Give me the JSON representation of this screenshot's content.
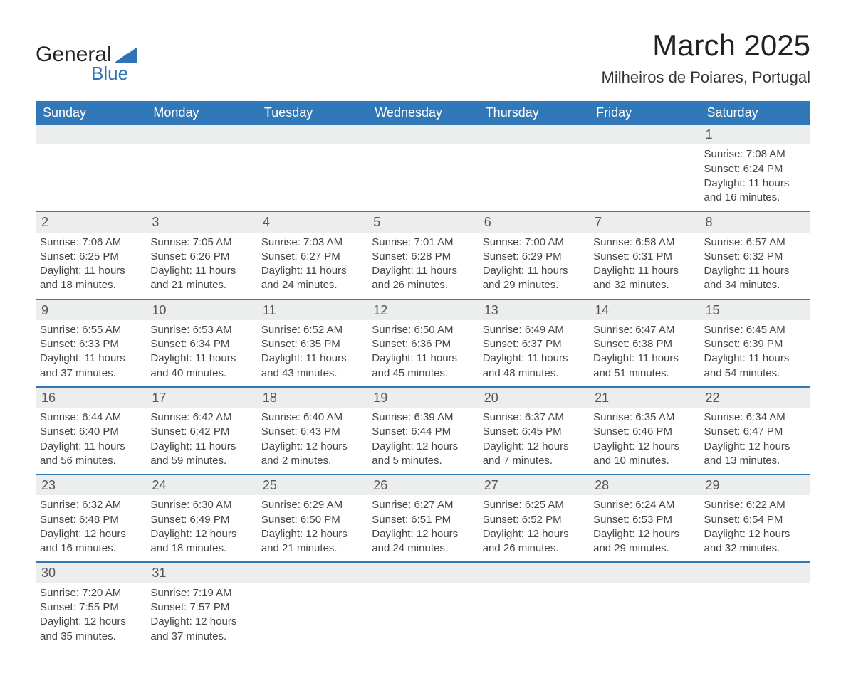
{
  "logo": {
    "general": "General",
    "blue": "Blue",
    "shape_color": "#2f72b5"
  },
  "title": "March 2025",
  "location": "Milheiros de Poiares, Portugal",
  "colors": {
    "header_bg": "#3178b8",
    "header_text": "#ffffff",
    "daynum_bg": "#eceded",
    "border": "#3178b8",
    "body_text": "#444444"
  },
  "weekdays": [
    "Sunday",
    "Monday",
    "Tuesday",
    "Wednesday",
    "Thursday",
    "Friday",
    "Saturday"
  ],
  "weeks": [
    [
      null,
      null,
      null,
      null,
      null,
      null,
      {
        "n": "1",
        "sr": "Sunrise: 7:08 AM",
        "ss": "Sunset: 6:24 PM",
        "d1": "Daylight: 11 hours",
        "d2": "and 16 minutes."
      }
    ],
    [
      {
        "n": "2",
        "sr": "Sunrise: 7:06 AM",
        "ss": "Sunset: 6:25 PM",
        "d1": "Daylight: 11 hours",
        "d2": "and 18 minutes."
      },
      {
        "n": "3",
        "sr": "Sunrise: 7:05 AM",
        "ss": "Sunset: 6:26 PM",
        "d1": "Daylight: 11 hours",
        "d2": "and 21 minutes."
      },
      {
        "n": "4",
        "sr": "Sunrise: 7:03 AM",
        "ss": "Sunset: 6:27 PM",
        "d1": "Daylight: 11 hours",
        "d2": "and 24 minutes."
      },
      {
        "n": "5",
        "sr": "Sunrise: 7:01 AM",
        "ss": "Sunset: 6:28 PM",
        "d1": "Daylight: 11 hours",
        "d2": "and 26 minutes."
      },
      {
        "n": "6",
        "sr": "Sunrise: 7:00 AM",
        "ss": "Sunset: 6:29 PM",
        "d1": "Daylight: 11 hours",
        "d2": "and 29 minutes."
      },
      {
        "n": "7",
        "sr": "Sunrise: 6:58 AM",
        "ss": "Sunset: 6:31 PM",
        "d1": "Daylight: 11 hours",
        "d2": "and 32 minutes."
      },
      {
        "n": "8",
        "sr": "Sunrise: 6:57 AM",
        "ss": "Sunset: 6:32 PM",
        "d1": "Daylight: 11 hours",
        "d2": "and 34 minutes."
      }
    ],
    [
      {
        "n": "9",
        "sr": "Sunrise: 6:55 AM",
        "ss": "Sunset: 6:33 PM",
        "d1": "Daylight: 11 hours",
        "d2": "and 37 minutes."
      },
      {
        "n": "10",
        "sr": "Sunrise: 6:53 AM",
        "ss": "Sunset: 6:34 PM",
        "d1": "Daylight: 11 hours",
        "d2": "and 40 minutes."
      },
      {
        "n": "11",
        "sr": "Sunrise: 6:52 AM",
        "ss": "Sunset: 6:35 PM",
        "d1": "Daylight: 11 hours",
        "d2": "and 43 minutes."
      },
      {
        "n": "12",
        "sr": "Sunrise: 6:50 AM",
        "ss": "Sunset: 6:36 PM",
        "d1": "Daylight: 11 hours",
        "d2": "and 45 minutes."
      },
      {
        "n": "13",
        "sr": "Sunrise: 6:49 AM",
        "ss": "Sunset: 6:37 PM",
        "d1": "Daylight: 11 hours",
        "d2": "and 48 minutes."
      },
      {
        "n": "14",
        "sr": "Sunrise: 6:47 AM",
        "ss": "Sunset: 6:38 PM",
        "d1": "Daylight: 11 hours",
        "d2": "and 51 minutes."
      },
      {
        "n": "15",
        "sr": "Sunrise: 6:45 AM",
        "ss": "Sunset: 6:39 PM",
        "d1": "Daylight: 11 hours",
        "d2": "and 54 minutes."
      }
    ],
    [
      {
        "n": "16",
        "sr": "Sunrise: 6:44 AM",
        "ss": "Sunset: 6:40 PM",
        "d1": "Daylight: 11 hours",
        "d2": "and 56 minutes."
      },
      {
        "n": "17",
        "sr": "Sunrise: 6:42 AM",
        "ss": "Sunset: 6:42 PM",
        "d1": "Daylight: 11 hours",
        "d2": "and 59 minutes."
      },
      {
        "n": "18",
        "sr": "Sunrise: 6:40 AM",
        "ss": "Sunset: 6:43 PM",
        "d1": "Daylight: 12 hours",
        "d2": "and 2 minutes."
      },
      {
        "n": "19",
        "sr": "Sunrise: 6:39 AM",
        "ss": "Sunset: 6:44 PM",
        "d1": "Daylight: 12 hours",
        "d2": "and 5 minutes."
      },
      {
        "n": "20",
        "sr": "Sunrise: 6:37 AM",
        "ss": "Sunset: 6:45 PM",
        "d1": "Daylight: 12 hours",
        "d2": "and 7 minutes."
      },
      {
        "n": "21",
        "sr": "Sunrise: 6:35 AM",
        "ss": "Sunset: 6:46 PM",
        "d1": "Daylight: 12 hours",
        "d2": "and 10 minutes."
      },
      {
        "n": "22",
        "sr": "Sunrise: 6:34 AM",
        "ss": "Sunset: 6:47 PM",
        "d1": "Daylight: 12 hours",
        "d2": "and 13 minutes."
      }
    ],
    [
      {
        "n": "23",
        "sr": "Sunrise: 6:32 AM",
        "ss": "Sunset: 6:48 PM",
        "d1": "Daylight: 12 hours",
        "d2": "and 16 minutes."
      },
      {
        "n": "24",
        "sr": "Sunrise: 6:30 AM",
        "ss": "Sunset: 6:49 PM",
        "d1": "Daylight: 12 hours",
        "d2": "and 18 minutes."
      },
      {
        "n": "25",
        "sr": "Sunrise: 6:29 AM",
        "ss": "Sunset: 6:50 PM",
        "d1": "Daylight: 12 hours",
        "d2": "and 21 minutes."
      },
      {
        "n": "26",
        "sr": "Sunrise: 6:27 AM",
        "ss": "Sunset: 6:51 PM",
        "d1": "Daylight: 12 hours",
        "d2": "and 24 minutes."
      },
      {
        "n": "27",
        "sr": "Sunrise: 6:25 AM",
        "ss": "Sunset: 6:52 PM",
        "d1": "Daylight: 12 hours",
        "d2": "and 26 minutes."
      },
      {
        "n": "28",
        "sr": "Sunrise: 6:24 AM",
        "ss": "Sunset: 6:53 PM",
        "d1": "Daylight: 12 hours",
        "d2": "and 29 minutes."
      },
      {
        "n": "29",
        "sr": "Sunrise: 6:22 AM",
        "ss": "Sunset: 6:54 PM",
        "d1": "Daylight: 12 hours",
        "d2": "and 32 minutes."
      }
    ],
    [
      {
        "n": "30",
        "sr": "Sunrise: 7:20 AM",
        "ss": "Sunset: 7:55 PM",
        "d1": "Daylight: 12 hours",
        "d2": "and 35 minutes."
      },
      {
        "n": "31",
        "sr": "Sunrise: 7:19 AM",
        "ss": "Sunset: 7:57 PM",
        "d1": "Daylight: 12 hours",
        "d2": "and 37 minutes."
      },
      null,
      null,
      null,
      null,
      null
    ]
  ]
}
